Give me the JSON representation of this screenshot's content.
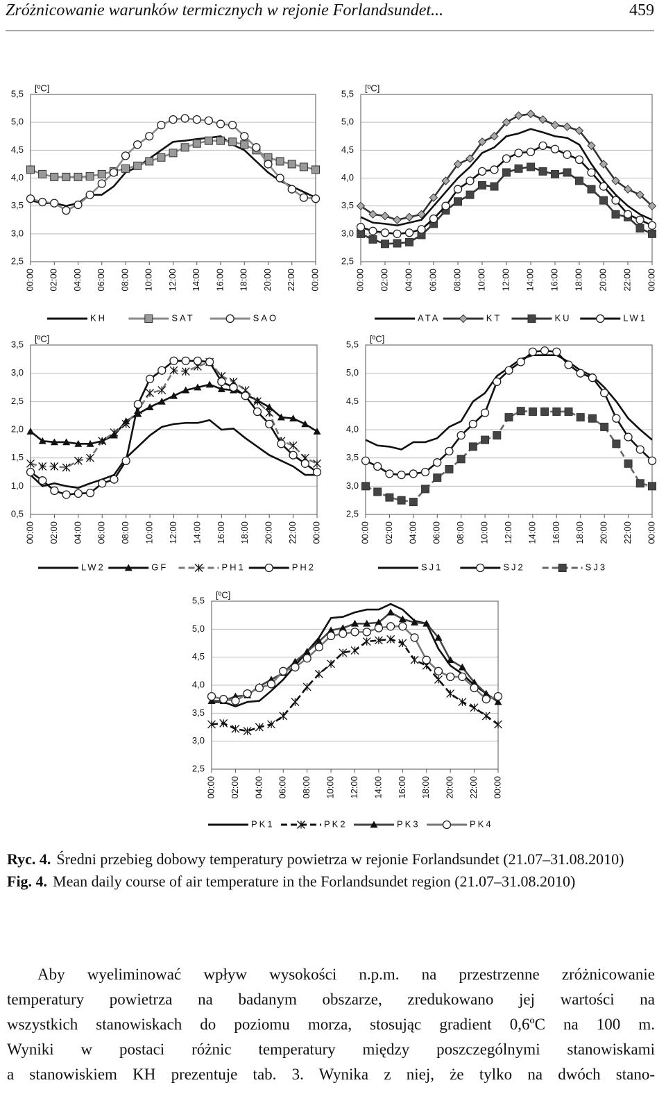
{
  "header": {
    "title": "Zróżnicowanie warunków termicznych w rejonie Forlandsundet...",
    "page": "459"
  },
  "chart_data": [
    {
      "type": "line",
      "unit_label": "[ºC]",
      "categories": [
        "00:00",
        null,
        "02:00",
        null,
        "04:00",
        null,
        "06:00",
        null,
        "08:00",
        null,
        "10:00",
        null,
        "12:00",
        null,
        "14:00",
        null,
        "16:00",
        null,
        "18:00",
        null,
        "20:00",
        null,
        "22:00",
        null,
        "00:00"
      ],
      "ylim": [
        2.5,
        5.5
      ],
      "yticks": [
        {
          "value": 2.5,
          "label": "2,5"
        },
        {
          "value": 3,
          "label": "3,0"
        },
        {
          "value": 3.5,
          "label": "3,5"
        },
        {
          "value": 4,
          "label": "4,0"
        },
        {
          "value": 4.5,
          "label": "4,5"
        },
        {
          "value": 5,
          "label": "5,0"
        },
        {
          "value": 5.5,
          "label": "5,5"
        }
      ],
      "grid": true,
      "series": [
        {
          "name": "KH",
          "color": "#111111",
          "marker": "none",
          "values": [
            3.6,
            3.55,
            3.55,
            3.5,
            3.55,
            3.7,
            3.7,
            3.85,
            4.1,
            4.2,
            4.35,
            4.5,
            4.65,
            4.67,
            4.7,
            4.72,
            4.75,
            4.6,
            4.5,
            4.3,
            4.1,
            3.95,
            3.85,
            3.75,
            3.65
          ]
        },
        {
          "name": "SAT",
          "color": "#8a8a8a",
          "marker": "square",
          "values": [
            4.15,
            4.07,
            4.02,
            4.02,
            4.02,
            4.03,
            4.07,
            4.12,
            4.17,
            4.22,
            4.3,
            4.37,
            4.45,
            4.55,
            4.62,
            4.67,
            4.67,
            4.65,
            4.6,
            4.5,
            4.37,
            4.3,
            4.25,
            4.2,
            4.15
          ]
        },
        {
          "name": "SAO",
          "color": "#8a8a8a",
          "marker": "circle",
          "values": [
            3.63,
            3.57,
            3.55,
            3.42,
            3.52,
            3.7,
            3.9,
            4.1,
            4.4,
            4.6,
            4.75,
            4.95,
            5.05,
            5.07,
            5.05,
            5.03,
            4.97,
            4.95,
            4.75,
            4.55,
            4.25,
            4.0,
            3.8,
            3.65,
            3.63
          ]
        }
      ]
    },
    {
      "type": "line",
      "unit_label": "[ºC]",
      "categories": [
        "00:00",
        null,
        "02:00",
        null,
        "04:00",
        null,
        "06:00",
        null,
        "08:00",
        null,
        "10:00",
        null,
        "12:00",
        null,
        "14:00",
        null,
        "16:00",
        null,
        "18:00",
        null,
        "20:00",
        null,
        "22:00",
        null,
        "00:00"
      ],
      "ylim": [
        2.5,
        5.5
      ],
      "yticks": [
        {
          "value": 2.5,
          "label": "2,5"
        },
        {
          "value": 3,
          "label": "3,0"
        },
        {
          "value": 3.5,
          "label": "3,5"
        },
        {
          "value": 4,
          "label": "4,0"
        },
        {
          "value": 4.5,
          "label": "4,5"
        },
        {
          "value": 5,
          "label": "5,0"
        },
        {
          "value": 5.5,
          "label": "5,5"
        }
      ],
      "grid": true,
      "series": [
        {
          "name": "ATA",
          "color": "#111111",
          "marker": "none",
          "values": [
            3.3,
            3.2,
            3.18,
            3.15,
            3.2,
            3.25,
            3.5,
            3.75,
            4.0,
            4.2,
            4.45,
            4.55,
            4.75,
            4.8,
            4.88,
            4.82,
            4.75,
            4.72,
            4.6,
            4.25,
            3.95,
            3.7,
            3.5,
            3.35,
            3.25
          ]
        },
        {
          "name": "KT",
          "color": "#333333",
          "marker": "diamond",
          "values": [
            3.5,
            3.35,
            3.32,
            3.25,
            3.3,
            3.35,
            3.65,
            3.95,
            4.25,
            4.35,
            4.65,
            4.75,
            5.0,
            5.12,
            5.15,
            5.05,
            4.95,
            4.92,
            4.85,
            4.58,
            4.25,
            3.95,
            3.8,
            3.7,
            3.5
          ]
        },
        {
          "name": "KU",
          "color": "#333333",
          "marker": "square",
          "values": [
            3.0,
            2.9,
            2.82,
            2.83,
            2.85,
            2.98,
            3.18,
            3.42,
            3.58,
            3.7,
            3.87,
            3.85,
            4.1,
            4.17,
            4.2,
            4.12,
            4.07,
            4.1,
            3.95,
            3.8,
            3.6,
            3.35,
            3.3,
            3.1,
            3.0
          ]
        },
        {
          "name": "LW1",
          "color": "#111111",
          "marker": "circle",
          "values": [
            3.12,
            3.05,
            3.02,
            3.0,
            3.02,
            3.08,
            3.27,
            3.5,
            3.8,
            3.95,
            4.12,
            4.15,
            4.35,
            4.45,
            4.47,
            4.58,
            4.52,
            4.42,
            4.33,
            4.1,
            3.85,
            3.6,
            3.35,
            3.25,
            3.15
          ]
        }
      ]
    },
    {
      "type": "line",
      "unit_label": "[ºC]",
      "categories": [
        "00:00",
        null,
        "02:00",
        null,
        "04:00",
        null,
        "06:00",
        null,
        "08:00",
        null,
        "10:00",
        null,
        "12:00",
        null,
        "14:00",
        null,
        "16:00",
        null,
        "18:00",
        null,
        "20:00",
        null,
        "22:00",
        null,
        "00:00"
      ],
      "ylim": [
        0.5,
        3.5
      ],
      "yticks": [
        {
          "value": 0.5,
          "label": "0,5"
        },
        {
          "value": 1,
          "label": "1,0"
        },
        {
          "value": 1.5,
          "label": "1,5"
        },
        {
          "value": 2,
          "label": "2,0"
        },
        {
          "value": 2.5,
          "label": "2,5"
        },
        {
          "value": 3,
          "label": "3,0"
        },
        {
          "value": 3.5,
          "label": "3,5"
        }
      ],
      "grid": true,
      "series": [
        {
          "name": "LW2",
          "color": "#111111",
          "marker": "none",
          "values": [
            1.2,
            1.0,
            1.05,
            1.0,
            0.97,
            1.05,
            1.12,
            1.2,
            1.5,
            1.7,
            1.9,
            2.05,
            2.1,
            2.12,
            2.12,
            2.17,
            2.0,
            2.02,
            1.85,
            1.7,
            1.55,
            1.45,
            1.35,
            1.2,
            1.2
          ]
        },
        {
          "name": "GF",
          "color": "#111111",
          "marker": "triangle",
          "values": [
            1.97,
            1.8,
            1.78,
            1.78,
            1.75,
            1.75,
            1.8,
            1.9,
            2.15,
            2.28,
            2.4,
            2.5,
            2.6,
            2.7,
            2.75,
            2.8,
            2.72,
            2.7,
            2.62,
            2.52,
            2.4,
            2.22,
            2.2,
            2.1,
            1.97
          ]
        },
        {
          "name": "PH1",
          "color": "#777777",
          "marker": "star",
          "dash": true,
          "values": [
            1.4,
            1.35,
            1.35,
            1.33,
            1.45,
            1.5,
            1.8,
            1.95,
            2.1,
            2.35,
            2.65,
            2.7,
            3.05,
            3.03,
            3.12,
            3.2,
            2.95,
            2.85,
            2.7,
            2.5,
            2.3,
            1.8,
            1.72,
            1.5,
            1.4
          ]
        },
        {
          "name": "PH2",
          "color": "#111111",
          "marker": "circle",
          "values": [
            1.25,
            1.1,
            0.92,
            0.85,
            0.87,
            0.88,
            1.05,
            1.12,
            1.45,
            2.45,
            2.9,
            3.05,
            3.22,
            3.22,
            3.22,
            3.2,
            2.85,
            2.75,
            2.6,
            2.32,
            2.1,
            1.75,
            1.55,
            1.4,
            1.25
          ]
        }
      ]
    },
    {
      "type": "line",
      "unit_label": "[ºC]",
      "categories": [
        "00:00",
        null,
        "02:00",
        null,
        "04:00",
        null,
        "06:00",
        null,
        "08:00",
        null,
        "10:00",
        null,
        "12:00",
        null,
        "14:00",
        null,
        "16:00",
        null,
        "18:00",
        null,
        "20:00",
        null,
        "22:00",
        null,
        "00:00"
      ],
      "ylim": [
        2.5,
        5.5
      ],
      "yticks": [
        {
          "value": 2.5,
          "label": "2,5"
        },
        {
          "value": 3,
          "label": "3,0"
        },
        {
          "value": 3.5,
          "label": "3,5"
        },
        {
          "value": 4,
          "label": "4,0"
        },
        {
          "value": 4.5,
          "label": "4,5"
        },
        {
          "value": 5,
          "label": "5,0"
        },
        {
          "value": 5.5,
          "label": "5,5"
        }
      ],
      "grid": true,
      "series": [
        {
          "name": "SJ1",
          "color": "#111111",
          "marker": "none",
          "values": [
            3.82,
            3.72,
            3.7,
            3.65,
            3.78,
            3.78,
            3.85,
            4.05,
            4.15,
            4.5,
            4.65,
            4.95,
            5.1,
            5.25,
            5.32,
            5.32,
            5.32,
            5.2,
            5.05,
            4.95,
            4.75,
            4.5,
            4.2,
            4.0,
            3.82
          ]
        },
        {
          "name": "SJ2",
          "color": "#111111",
          "marker": "circle",
          "values": [
            3.45,
            3.35,
            3.22,
            3.2,
            3.22,
            3.25,
            3.42,
            3.62,
            3.9,
            4.1,
            4.3,
            4.85,
            5.05,
            5.2,
            5.38,
            5.4,
            5.38,
            5.15,
            5.0,
            4.92,
            4.65,
            4.2,
            3.87,
            3.65,
            3.45
          ]
        },
        {
          "name": "SJ3",
          "color": "#666666",
          "marker": "square",
          "dash": true,
          "values": [
            3.0,
            2.9,
            2.8,
            2.75,
            2.72,
            2.95,
            3.15,
            3.3,
            3.48,
            3.7,
            3.82,
            3.9,
            4.22,
            4.33,
            4.32,
            4.32,
            4.32,
            4.32,
            4.22,
            4.2,
            4.05,
            3.75,
            3.4,
            3.05,
            3.0
          ]
        }
      ]
    },
    {
      "type": "line",
      "unit_label": "[ºC]",
      "categories": [
        "00:00",
        null,
        "02:00",
        null,
        "04:00",
        null,
        "06:00",
        null,
        "08:00",
        null,
        "10:00",
        null,
        "12:00",
        null,
        "14:00",
        null,
        "16:00",
        null,
        "18:00",
        null,
        "20:00",
        null,
        "22:00",
        null,
        "00:00"
      ],
      "ylim": [
        2.5,
        5.5
      ],
      "yticks": [
        {
          "value": 2.5,
          "label": "2,5"
        },
        {
          "value": 3,
          "label": "3,0"
        },
        {
          "value": 3.5,
          "label": "3,5"
        },
        {
          "value": 4,
          "label": "4,0"
        },
        {
          "value": 4.5,
          "label": "4,5"
        },
        {
          "value": 5,
          "label": "5,0"
        },
        {
          "value": 5.5,
          "label": "5,5"
        }
      ],
      "grid": true,
      "series": [
        {
          "name": "PK1",
          "color": "#111111",
          "marker": "none",
          "values": [
            3.7,
            3.7,
            3.62,
            3.7,
            3.72,
            3.9,
            4.1,
            4.35,
            4.6,
            4.85,
            5.2,
            5.22,
            5.3,
            5.35,
            5.35,
            5.45,
            5.35,
            5.15,
            5.1,
            4.65,
            4.35,
            4.2,
            4.0,
            3.85,
            3.7
          ]
        },
        {
          "name": "PK2",
          "color": "#111111",
          "marker": "star",
          "dash": true,
          "values": [
            3.3,
            3.32,
            3.22,
            3.18,
            3.25,
            3.3,
            3.45,
            3.7,
            3.97,
            4.2,
            4.38,
            4.58,
            4.62,
            4.78,
            4.8,
            4.82,
            4.75,
            4.45,
            4.35,
            4.1,
            3.85,
            3.7,
            3.6,
            3.45,
            3.3
          ]
        },
        {
          "name": "PK3",
          "color": "#444444",
          "marker": "triangle",
          "values": [
            3.72,
            3.72,
            3.8,
            3.82,
            3.98,
            4.1,
            4.22,
            4.42,
            4.6,
            4.78,
            4.98,
            5.02,
            5.1,
            5.1,
            5.12,
            5.3,
            5.18,
            5.12,
            5.1,
            4.85,
            4.45,
            4.32,
            4.05,
            3.85,
            3.7
          ]
        },
        {
          "name": "PK4",
          "color": "#777777",
          "marker": "circle",
          "values": [
            3.8,
            3.75,
            3.72,
            3.85,
            3.95,
            4.02,
            4.25,
            4.32,
            4.48,
            4.68,
            4.88,
            4.92,
            4.95,
            4.95,
            5.02,
            5.05,
            5.05,
            4.85,
            4.45,
            4.25,
            4.15,
            4.15,
            3.95,
            3.75,
            3.8
          ]
        }
      ]
    }
  ],
  "caption": [
    {
      "label": "Ryc. 4.",
      "text": "Średni przebieg dobowy temperatury powietrza w rejonie Forlandsundet (21.07–31.08.2010)"
    },
    {
      "label": "Fig. 4.",
      "text": "Mean daily course of air temperature in the Forlandsundet region (21.07–31.08.2010)"
    }
  ],
  "body": {
    "lines": [
      "Aby wyeliminować wpływ wysokości n.p.m. na przestrzenne zróżnicowanie",
      "temperatury powietrza na badanym obszarze, zredukowano jej wartości na",
      "wszystkich stanowiskach do poziomu morza, stosując gradient 0,6ºC na 100 m.",
      "Wyniki w postaci różnic temperatury między poszczególnymi stanowiskami",
      "a stanowiskiem KH prezentuje tab. 3. Wynika z niej, że tylko na dwóch stano-"
    ]
  }
}
